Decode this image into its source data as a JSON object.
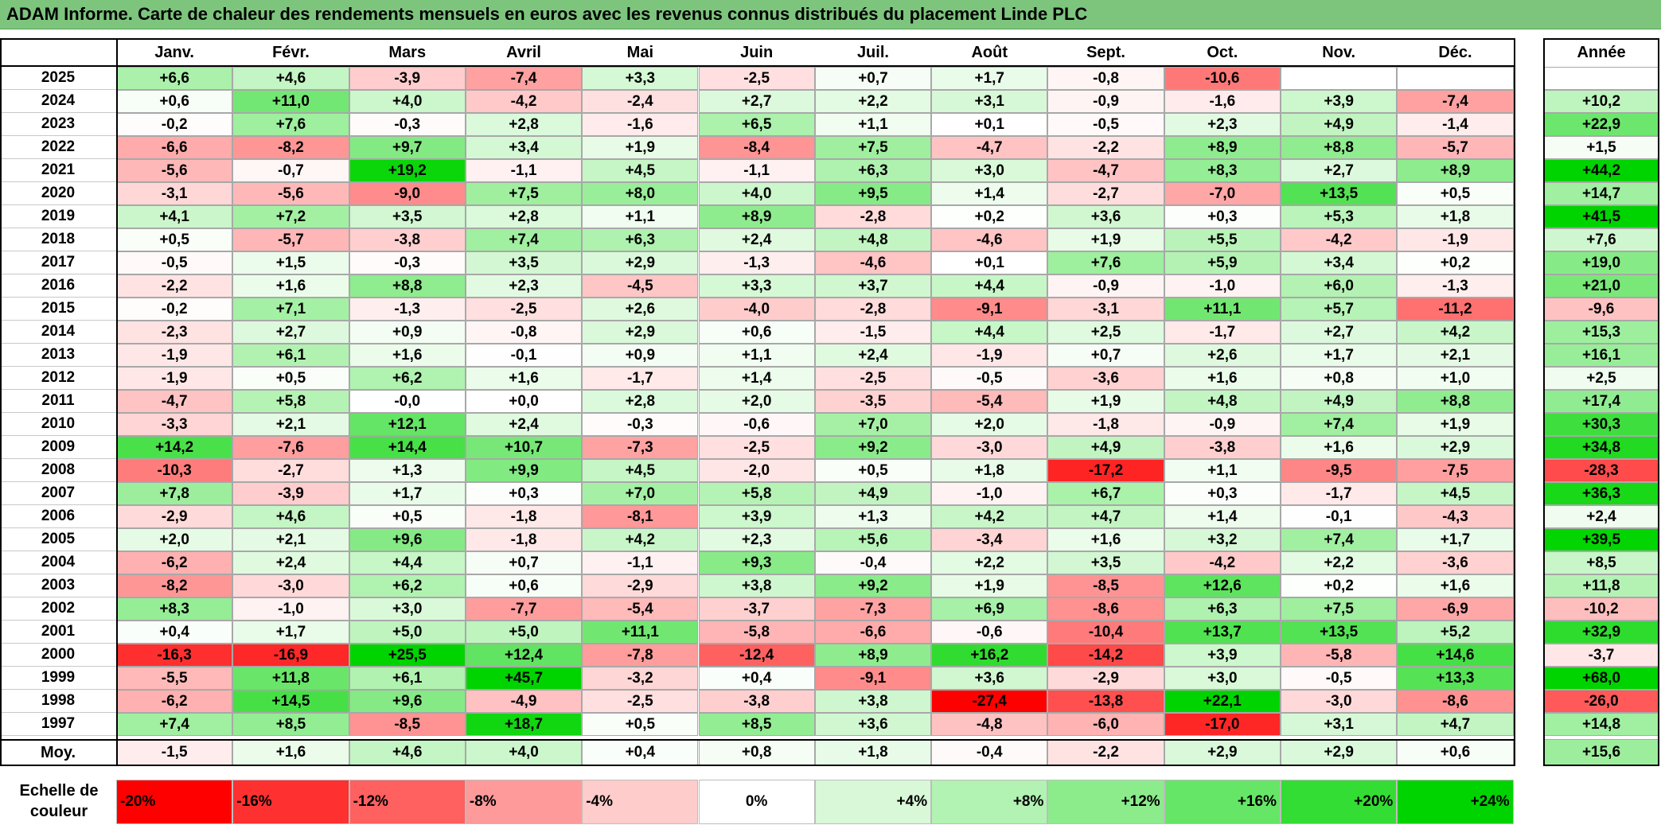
{
  "title": "ADAM Informe. Carte de chaleur des rendements mensuels en euros avec les revenus connus distribués du placement Linde PLC",
  "chart_data": {
    "type": "heatmap",
    "title": "ADAM Informe. Carte de chaleur des rendements mensuels en euros avec les revenus connus distribués du placement Linde PLC",
    "months": [
      "Janv.",
      "Févr.",
      "Mars",
      "Avril",
      "Mai",
      "Juin",
      "Juil.",
      "Août",
      "Sept.",
      "Oct.",
      "Nov.",
      "Déc."
    ],
    "year_header": "Année",
    "rows": [
      {
        "year": "2025",
        "values": [
          "+6,6",
          "+4,6",
          "-3,9",
          "-7,4",
          "+3,3",
          "-2,5",
          "+0,7",
          "+1,7",
          "-0,8",
          "-10,6",
          "",
          ""
        ],
        "annual": ""
      },
      {
        "year": "2024",
        "values": [
          "+0,6",
          "+11,0",
          "+4,0",
          "-4,2",
          "-2,4",
          "+2,7",
          "+2,2",
          "+3,1",
          "-0,9",
          "-1,6",
          "+3,9",
          "-7,4"
        ],
        "annual": "+10,2"
      },
      {
        "year": "2023",
        "values": [
          "-0,2",
          "+7,6",
          "-0,3",
          "+2,8",
          "-1,6",
          "+6,5",
          "+1,1",
          "+0,1",
          "-0,5",
          "+2,3",
          "+4,9",
          "-1,4"
        ],
        "annual": "+22,9"
      },
      {
        "year": "2022",
        "values": [
          "-6,6",
          "-8,2",
          "+9,7",
          "+3,4",
          "+1,9",
          "-8,4",
          "+7,5",
          "-4,7",
          "-2,2",
          "+8,9",
          "+8,8",
          "-5,7"
        ],
        "annual": "+1,5"
      },
      {
        "year": "2021",
        "values": [
          "-5,6",
          "-0,7",
          "+19,2",
          "-1,1",
          "+4,5",
          "-1,1",
          "+6,3",
          "+3,0",
          "-4,7",
          "+8,3",
          "+2,7",
          "+8,9"
        ],
        "annual": "+44,2"
      },
      {
        "year": "2020",
        "values": [
          "-3,1",
          "-5,6",
          "-9,0",
          "+7,5",
          "+8,0",
          "+4,0",
          "+9,5",
          "+1,4",
          "-2,7",
          "-7,0",
          "+13,5",
          "+0,5"
        ],
        "annual": "+14,7"
      },
      {
        "year": "2019",
        "values": [
          "+4,1",
          "+7,2",
          "+3,5",
          "+2,8",
          "+1,1",
          "+8,9",
          "-2,8",
          "+0,2",
          "+3,6",
          "+0,3",
          "+5,3",
          "+1,8"
        ],
        "annual": "+41,5"
      },
      {
        "year": "2018",
        "values": [
          "+0,5",
          "-5,7",
          "-3,8",
          "+7,4",
          "+6,3",
          "+2,4",
          "+4,8",
          "-4,6",
          "+1,9",
          "+5,5",
          "-4,2",
          "-1,9"
        ],
        "annual": "+7,6"
      },
      {
        "year": "2017",
        "values": [
          "-0,5",
          "+1,5",
          "-0,3",
          "+3,5",
          "+2,9",
          "-1,3",
          "-4,6",
          "+0,1",
          "+7,6",
          "+5,9",
          "+3,4",
          "+0,2"
        ],
        "annual": "+19,0"
      },
      {
        "year": "2016",
        "values": [
          "-2,2",
          "+1,6",
          "+8,8",
          "+2,3",
          "-4,5",
          "+3,3",
          "+3,7",
          "+4,4",
          "-0,9",
          "-1,0",
          "+6,0",
          "-1,3"
        ],
        "annual": "+21,0"
      },
      {
        "year": "2015",
        "values": [
          "-0,2",
          "+7,1",
          "-1,3",
          "-2,5",
          "+2,6",
          "-4,0",
          "-2,8",
          "-9,1",
          "-3,1",
          "+11,1",
          "+5,7",
          "-11,2"
        ],
        "annual": "-9,6"
      },
      {
        "year": "2014",
        "values": [
          "-2,3",
          "+2,7",
          "+0,9",
          "-0,8",
          "+2,9",
          "+0,6",
          "-1,5",
          "+4,4",
          "+2,5",
          "-1,7",
          "+2,7",
          "+4,2"
        ],
        "annual": "+15,3"
      },
      {
        "year": "2013",
        "values": [
          "-1,9",
          "+6,1",
          "+1,6",
          "-0,1",
          "+0,9",
          "+1,1",
          "+2,4",
          "-1,9",
          "+0,7",
          "+2,6",
          "+1,7",
          "+2,1"
        ],
        "annual": "+16,1"
      },
      {
        "year": "2012",
        "values": [
          "-1,9",
          "+0,5",
          "+6,2",
          "+1,6",
          "-1,7",
          "+1,4",
          "-2,5",
          "-0,5",
          "-3,6",
          "+1,6",
          "+0,8",
          "+1,0"
        ],
        "annual": "+2,5"
      },
      {
        "year": "2011",
        "values": [
          "-4,7",
          "+5,8",
          "-0,0",
          "+0,0",
          "+2,8",
          "+2,0",
          "-3,5",
          "-5,4",
          "+1,9",
          "+4,8",
          "+4,9",
          "+8,8"
        ],
        "annual": "+17,4"
      },
      {
        "year": "2010",
        "values": [
          "-3,3",
          "+2,1",
          "+12,1",
          "+2,4",
          "-0,3",
          "-0,6",
          "+7,0",
          "+2,0",
          "-1,8",
          "-0,9",
          "+7,4",
          "+1,9"
        ],
        "annual": "+30,3"
      },
      {
        "year": "2009",
        "values": [
          "+14,2",
          "-7,6",
          "+14,4",
          "+10,7",
          "-7,3",
          "-2,5",
          "+9,2",
          "-3,0",
          "+4,9",
          "-3,8",
          "+1,6",
          "+2,9"
        ],
        "annual": "+34,8"
      },
      {
        "year": "2008",
        "values": [
          "-10,3",
          "-2,7",
          "+1,3",
          "+9,9",
          "+4,5",
          "-2,0",
          "+0,5",
          "+1,8",
          "-17,2",
          "+1,1",
          "-9,5",
          "-7,5"
        ],
        "annual": "-28,3"
      },
      {
        "year": "2007",
        "values": [
          "+7,8",
          "-3,9",
          "+1,7",
          "+0,3",
          "+7,0",
          "+5,8",
          "+4,9",
          "-1,0",
          "+6,7",
          "+0,3",
          "-1,7",
          "+4,5"
        ],
        "annual": "+36,3"
      },
      {
        "year": "2006",
        "values": [
          "-2,9",
          "+4,6",
          "+0,5",
          "-1,8",
          "-8,1",
          "+3,9",
          "+1,3",
          "+4,2",
          "+4,7",
          "+1,4",
          "-0,1",
          "-4,3"
        ],
        "annual": "+2,4"
      },
      {
        "year": "2005",
        "values": [
          "+2,0",
          "+2,1",
          "+9,6",
          "-1,8",
          "+4,2",
          "+2,3",
          "+5,6",
          "-3,4",
          "+1,6",
          "+3,2",
          "+7,4",
          "+1,7"
        ],
        "annual": "+39,5"
      },
      {
        "year": "2004",
        "values": [
          "-6,2",
          "+2,4",
          "+4,4",
          "+0,7",
          "-1,1",
          "+9,3",
          "-0,4",
          "+2,2",
          "+3,5",
          "-4,2",
          "+2,2",
          "-3,6"
        ],
        "annual": "+8,5"
      },
      {
        "year": "2003",
        "values": [
          "-8,2",
          "-3,0",
          "+6,2",
          "+0,6",
          "-2,9",
          "+3,8",
          "+9,2",
          "+1,9",
          "-8,5",
          "+12,6",
          "+0,2",
          "+1,6"
        ],
        "annual": "+11,8"
      },
      {
        "year": "2002",
        "values": [
          "+8,3",
          "-1,0",
          "+3,0",
          "-7,7",
          "-5,4",
          "-3,7",
          "-7,3",
          "+6,9",
          "-8,6",
          "+6,3",
          "+7,5",
          "-6,9"
        ],
        "annual": "-10,2"
      },
      {
        "year": "2001",
        "values": [
          "+0,4",
          "+1,7",
          "+5,0",
          "+5,0",
          "+11,1",
          "-5,8",
          "-6,6",
          "-0,6",
          "-10,4",
          "+13,7",
          "+13,5",
          "+5,2"
        ],
        "annual": "+32,9"
      },
      {
        "year": "2000",
        "values": [
          "-16,3",
          "-16,9",
          "+25,5",
          "+12,4",
          "-7,8",
          "-12,4",
          "+8,9",
          "+16,2",
          "-14,2",
          "+3,9",
          "-5,8",
          "+14,6"
        ],
        "annual": "-3,7"
      },
      {
        "year": "1999",
        "values": [
          "-5,5",
          "+11,8",
          "+6,1",
          "+45,7",
          "-3,2",
          "+0,4",
          "-9,1",
          "+3,6",
          "-2,9",
          "+3,0",
          "-0,5",
          "+13,3"
        ],
        "annual": "+68,0"
      },
      {
        "year": "1998",
        "values": [
          "-6,2",
          "+14,5",
          "+9,6",
          "-4,9",
          "-2,5",
          "-3,8",
          "+3,8",
          "-27,4",
          "-13,8",
          "+22,1",
          "-3,0",
          "-8,6"
        ],
        "annual": "-26,0"
      },
      {
        "year": "1997",
        "values": [
          "+7,4",
          "+8,5",
          "-8,5",
          "+18,7",
          "+0,5",
          "+8,5",
          "+3,6",
          "-4,8",
          "-6,0",
          "-17,0",
          "+3,1",
          "+4,7"
        ],
        "annual": "+14,8"
      }
    ],
    "average_row": {
      "label": "Moy.",
      "values": [
        "-1,5",
        "+1,6",
        "+4,6",
        "+4,0",
        "+0,4",
        "+0,8",
        "+1,8",
        "-0,4",
        "-2,2",
        "+2,9",
        "+2,9",
        "+0,6"
      ],
      "annual": "+15,6"
    },
    "color_scale": {
      "label": "Echelle de couleur",
      "steps": [
        {
          "text": "-20%",
          "value": -20,
          "color": "#ff0000"
        },
        {
          "text": "-16%",
          "value": -16,
          "color": "#ff3030"
        },
        {
          "text": "-12%",
          "value": -12,
          "color": "#ff6060"
        },
        {
          "text": "-8%",
          "value": -8,
          "color": "#ff9a9a"
        },
        {
          "text": "-4%",
          "value": -4,
          "color": "#ffcccc"
        },
        {
          "text": "0%",
          "value": 0,
          "color": "#ffffff"
        },
        {
          "text": "+4%",
          "value": 4,
          "color": "#d8f8d8"
        },
        {
          "text": "+8%",
          "value": 8,
          "color": "#b2f2b2"
        },
        {
          "text": "+12%",
          "value": 12,
          "color": "#8cec8c"
        },
        {
          "text": "+16%",
          "value": 16,
          "color": "#66e666"
        },
        {
          "text": "+20%",
          "value": 20,
          "color": "#33dd33"
        },
        {
          "text": "+24%",
          "value": 24,
          "color": "#00d400"
        }
      ]
    }
  }
}
